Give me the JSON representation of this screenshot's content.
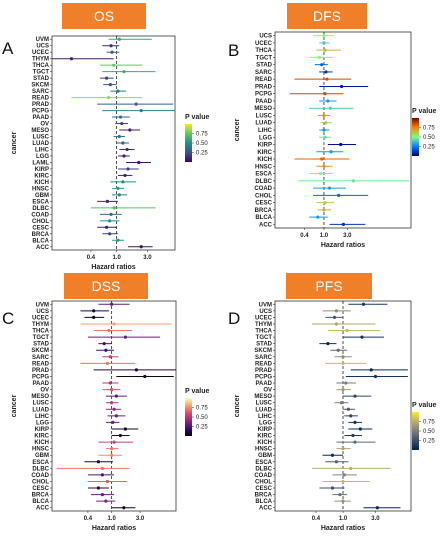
{
  "chart_data": [
    {
      "type": "forest",
      "title": "OS",
      "panel_label": "A",
      "xlabel": "Hazard ratios",
      "ylabel": "cancer",
      "xticks": [
        "0.4",
        "1.0",
        "3.0"
      ],
      "xtick_values": [
        0.4,
        1.0,
        3.0
      ],
      "xlim_log": [
        0.1,
        8.0
      ],
      "reference_line": 1.0,
      "legend": {
        "title": "P value",
        "ticks": [
          "0.75",
          "0.50",
          "0.25"
        ],
        "colormap": "viridis"
      },
      "cancers": [
        "UVM",
        "UCS",
        "UCEC",
        "THYM",
        "THCA",
        "TGCT",
        "STAD",
        "SKCM",
        "SARC",
        "READ",
        "PRAD",
        "PCPG",
        "PAAD",
        "OV",
        "MESO",
        "LUSC",
        "LUAD",
        "LIHC",
        "LGG",
        "LAML",
        "KIRP",
        "KIRC",
        "KICH",
        "HNSC",
        "GBM",
        "ESCA",
        "DLBC",
        "COAD",
        "CHOL",
        "CESC",
        "BRCA",
        "BLCA",
        "ACC"
      ],
      "hr": [
        1.1,
        0.82,
        0.85,
        0.2,
        0.9,
        1.3,
        0.7,
        0.8,
        1.05,
        0.75,
        2.0,
        2.4,
        1.15,
        1.2,
        1.6,
        1.1,
        1.25,
        1.45,
        1.3,
        2.2,
        1.5,
        1.35,
        1.25,
        1.05,
        1.1,
        0.72,
        0.92,
        0.82,
        0.78,
        0.7,
        0.78,
        1.05,
        2.4
      ],
      "lower": [
        0.75,
        0.6,
        0.7,
        0.06,
        0.55,
        0.6,
        0.55,
        0.62,
        0.8,
        0.2,
        0.5,
        0.6,
        0.85,
        0.95,
        1.1,
        0.9,
        1.0,
        1.1,
        1.05,
        1.4,
        1.05,
        1.05,
        0.8,
        0.85,
        0.85,
        0.5,
        0.4,
        0.55,
        0.55,
        0.5,
        0.6,
        0.85,
        1.5
      ],
      "upper": [
        3.5,
        1.1,
        1.1,
        0.9,
        2.5,
        4.0,
        0.9,
        1.0,
        1.4,
        2.5,
        7.5,
        8.0,
        1.6,
        1.5,
        2.3,
        1.35,
        1.55,
        1.9,
        1.6,
        3.4,
        2.2,
        1.75,
        2.0,
        1.3,
        1.45,
        1.05,
        4.0,
        1.2,
        1.1,
        1.0,
        1.05,
        1.3,
        3.6
      ],
      "pvalue": [
        0.6,
        0.15,
        0.3,
        0.1,
        0.75,
        0.6,
        0.2,
        0.25,
        0.4,
        0.85,
        0.3,
        0.45,
        0.35,
        0.2,
        0.1,
        0.4,
        0.3,
        0.15,
        0.1,
        0.05,
        0.2,
        0.1,
        0.5,
        0.55,
        0.45,
        0.1,
        0.7,
        0.35,
        0.5,
        0.1,
        0.2,
        0.55,
        0.05
      ]
    },
    {
      "type": "forest",
      "title": "DFS",
      "panel_label": "B",
      "xlabel": "Hazard ratios",
      "ylabel": "cancer",
      "xticks": [
        "0.4",
        "1.0",
        "3.0"
      ],
      "xtick_values": [
        0.4,
        1.0,
        3.0
      ],
      "xlim_log": [
        0.1,
        60.0
      ],
      "reference_line": 1.0,
      "legend": {
        "title": "P value",
        "ticks": [
          "0.75",
          "0.50",
          "0.25"
        ],
        "colormap": "jet"
      },
      "cancers": [
        "UCS",
        "UCEC",
        "THCA",
        "TGCT",
        "STAD",
        "SARC",
        "READ",
        "PRAD",
        "PCPG",
        "PAAD",
        "MESO",
        "LUSC",
        "LUAD",
        "LIHC",
        "LGG",
        "KIRP",
        "KIRC",
        "KICH",
        "HNSC",
        "ESCA",
        "DLBC",
        "COAD",
        "CHOL",
        "CESC",
        "BRCA",
        "BLCA",
        "ACC"
      ],
      "hr": [
        1.0,
        1.0,
        1.05,
        0.8,
        0.9,
        1.1,
        1.15,
        2.3,
        1.05,
        1.2,
        1.35,
        1.0,
        1.1,
        1.0,
        1.05,
        2.2,
        1.4,
        0.9,
        1.0,
        0.85,
        4.0,
        1.3,
        2.0,
        1.05,
        1.0,
        0.75,
        2.5
      ],
      "lower": [
        0.6,
        0.8,
        0.7,
        0.5,
        0.65,
        0.8,
        0.25,
        0.8,
        0.2,
        0.8,
        0.5,
        0.75,
        0.85,
        0.8,
        0.8,
        1.2,
        0.7,
        0.25,
        0.7,
        0.5,
        0.3,
        0.6,
        0.6,
        0.7,
        0.75,
        0.5,
        1.3
      ],
      "upper": [
        1.6,
        1.3,
        2.2,
        1.5,
        1.2,
        1.5,
        3.6,
        8.0,
        2.5,
        1.8,
        4.0,
        1.35,
        1.45,
        1.3,
        1.4,
        4.5,
        2.5,
        3.3,
        1.5,
        1.5,
        55.0,
        2.8,
        8.0,
        1.6,
        1.4,
        1.2,
        7.0
      ],
      "pvalue": [
        0.5,
        0.4,
        0.65,
        0.5,
        0.2,
        0.1,
        0.85,
        0.05,
        0.85,
        0.3,
        0.4,
        0.7,
        0.6,
        0.3,
        0.45,
        0.03,
        0.3,
        0.8,
        0.7,
        0.5,
        0.45,
        0.3,
        0.2,
        0.6,
        0.65,
        0.3,
        0.1
      ]
    },
    {
      "type": "forest",
      "title": "DSS",
      "panel_label": "C",
      "xlabel": "Hazard ratios",
      "ylabel": "cancer",
      "xticks": [
        "0.4",
        "1.0",
        "3.0"
      ],
      "xtick_values": [
        0.4,
        1.0,
        3.0
      ],
      "xlim_log": [
        0.1,
        12.0
      ],
      "reference_line": 1.0,
      "legend": {
        "title": "P value",
        "ticks": [
          "0.75",
          "0.50",
          "0.25"
        ],
        "colormap": "magma"
      },
      "cancers": [
        "UVM",
        "UCS",
        "UCEC",
        "THYM",
        "THCA",
        "TGCT",
        "STAD",
        "SKCM",
        "SARC",
        "READ",
        "PRAD",
        "PCPG",
        "PAAD",
        "OV",
        "MESO",
        "LUSC",
        "LUAD",
        "LIHC",
        "LGG",
        "KIRP",
        "KIRC",
        "KICH",
        "HNSC",
        "GBM",
        "ESCA",
        "DLBC",
        "COAD",
        "CHOL",
        "CESC",
        "BRCA",
        "BLCA",
        "ACC"
      ],
      "hr": [
        1.0,
        0.5,
        0.5,
        1.1,
        0.9,
        1.7,
        0.75,
        0.8,
        0.95,
        0.85,
        2.6,
        3.6,
        0.95,
        1.0,
        1.2,
        1.0,
        1.1,
        1.2,
        1.05,
        1.7,
        1.4,
        1.1,
        1.0,
        1.0,
        0.6,
        0.7,
        0.7,
        0.85,
        0.6,
        0.7,
        0.8,
        1.6
      ],
      "lower": [
        0.6,
        0.3,
        0.35,
        0.3,
        0.5,
        0.4,
        0.6,
        0.55,
        0.7,
        0.3,
        0.5,
        1.2,
        0.7,
        0.7,
        0.8,
        0.8,
        0.8,
        0.85,
        0.8,
        1.0,
        1.0,
        0.6,
        0.8,
        0.6,
        0.35,
        0.12,
        0.4,
        0.4,
        0.4,
        0.45,
        0.55,
        1.0
      ],
      "upper": [
        2.0,
        0.9,
        0.75,
        10.0,
        2.2,
        6.5,
        1.0,
        1.1,
        1.3,
        2.5,
        12.0,
        11.0,
        1.3,
        1.4,
        1.8,
        1.3,
        1.45,
        1.7,
        1.35,
        2.8,
        2.0,
        2.3,
        1.3,
        1.5,
        1.05,
        2.0,
        1.1,
        1.8,
        0.9,
        1.1,
        1.15,
        2.5
      ],
      "pvalue": [
        0.3,
        0.1,
        0.05,
        0.8,
        0.7,
        0.3,
        0.2,
        0.2,
        0.55,
        0.7,
        0.1,
        0.05,
        0.5,
        0.6,
        0.3,
        0.5,
        0.4,
        0.3,
        0.35,
        0.05,
        0.1,
        0.55,
        0.7,
        0.75,
        0.1,
        0.7,
        0.25,
        0.65,
        0.1,
        0.3,
        0.35,
        0.05
      ]
    },
    {
      "type": "forest",
      "title": "PFS",
      "panel_label": "D",
      "xlabel": "Hazard ratios",
      "ylabel": "cancer",
      "xticks": [
        "0.4",
        "1.0",
        "3.0"
      ],
      "xtick_values": [
        0.4,
        1.0,
        3.0
      ],
      "xlim_log": [
        0.1,
        10.0
      ],
      "reference_line": 1.0,
      "legend": {
        "title": "P value",
        "ticks": [
          "0.75",
          "0.50",
          "0.25"
        ],
        "colormap": "cividis"
      },
      "cancers": [
        "UVM",
        "UCS",
        "UCEC",
        "THYM",
        "THCA",
        "TGCT",
        "STAD",
        "SKCM",
        "SARC",
        "READ",
        "PRAD",
        "PCPG",
        "PAAD",
        "OV",
        "MESO",
        "LUSC",
        "LUAD",
        "LIHC",
        "LGG",
        "KIRP",
        "KIRC",
        "KICH",
        "HNSC",
        "GBM",
        "ESCA",
        "DLBC",
        "COAD",
        "CHOL",
        "CESC",
        "BRCA",
        "BLCA",
        "ACC"
      ],
      "hr": [
        2.0,
        0.8,
        0.75,
        0.8,
        1.15,
        1.9,
        0.6,
        0.85,
        1.0,
        1.0,
        2.6,
        3.0,
        1.1,
        1.0,
        1.5,
        0.95,
        1.2,
        1.3,
        1.5,
        1.8,
        1.4,
        1.5,
        1.0,
        0.7,
        0.8,
        1.3,
        1.05,
        1.0,
        0.7,
        0.9,
        1.0,
        3.2
      ],
      "lower": [
        1.2,
        0.5,
        0.55,
        0.35,
        0.6,
        1.0,
        0.45,
        0.65,
        0.75,
        0.55,
        1.3,
        1.1,
        0.8,
        0.8,
        1.0,
        0.75,
        1.0,
        1.05,
        1.2,
        1.2,
        1.05,
        0.8,
        0.8,
        0.5,
        0.55,
        0.35,
        0.7,
        0.5,
        0.45,
        0.7,
        0.75,
        2.0
      ],
      "upper": [
        4.5,
        1.3,
        1.0,
        3.0,
        3.5,
        4.0,
        0.8,
        1.15,
        1.35,
        2.2,
        9.0,
        9.0,
        1.55,
        1.3,
        2.6,
        1.2,
        1.5,
        1.65,
        1.9,
        2.7,
        1.9,
        3.0,
        1.3,
        1.0,
        1.2,
        5.0,
        1.6,
        2.5,
        1.05,
        1.15,
        1.3,
        7.0
      ],
      "pvalue": [
        0.1,
        0.6,
        0.3,
        0.7,
        0.8,
        0.1,
        0.05,
        0.4,
        0.6,
        0.8,
        0.05,
        0.1,
        0.5,
        0.65,
        0.2,
        0.5,
        0.3,
        0.2,
        0.1,
        0.05,
        0.15,
        0.4,
        0.7,
        0.05,
        0.35,
        0.75,
        0.55,
        0.8,
        0.25,
        0.45,
        0.6,
        0.03
      ]
    }
  ]
}
